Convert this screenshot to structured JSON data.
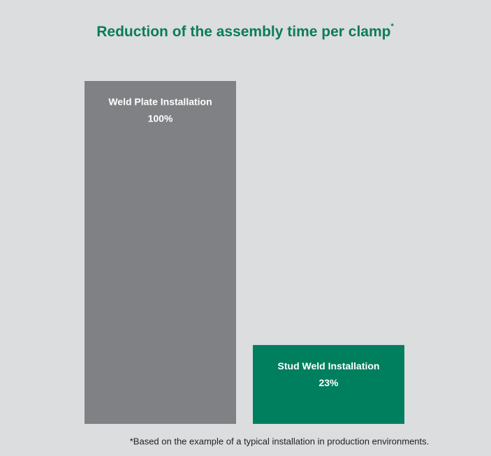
{
  "chart_data": {
    "type": "bar",
    "title": "Reduction of the assembly time per clamp",
    "title_marker": "*",
    "categories": [
      "Weld Plate Installation",
      "Stud Weld Installation"
    ],
    "values": [
      100,
      23
    ],
    "value_labels": [
      "100%",
      "23%"
    ],
    "colors": [
      "#808184",
      "#007f5f"
    ],
    "ylim": [
      0,
      100
    ],
    "grid": false,
    "footnote": "*Based on the example of a typical installation in production environments."
  }
}
